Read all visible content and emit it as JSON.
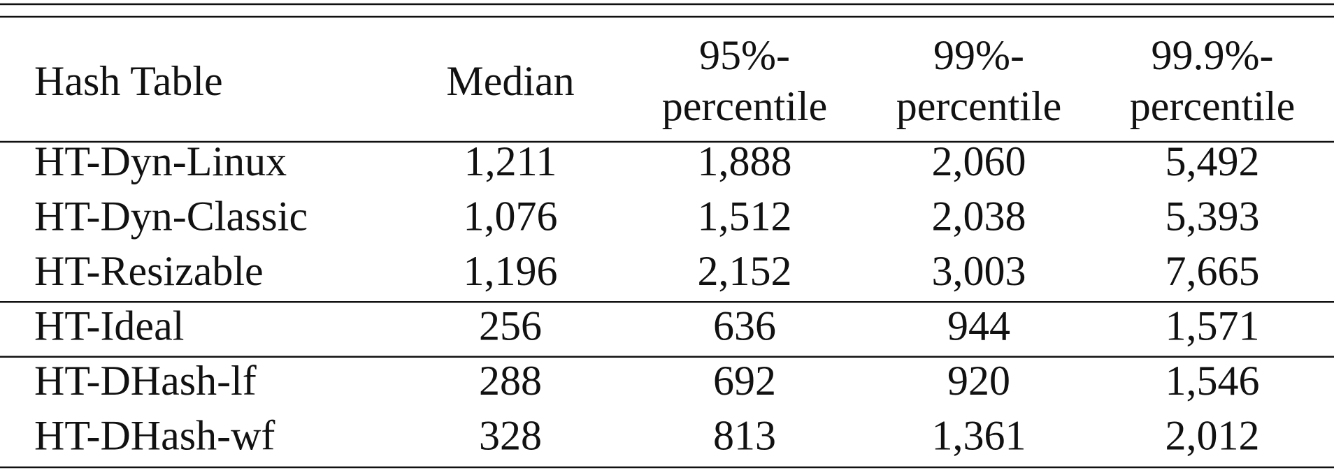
{
  "table": {
    "header": [
      [
        "Hash Table"
      ],
      [
        "Median"
      ],
      [
        "95%-",
        "percentile"
      ],
      [
        "99%-",
        "percentile"
      ],
      [
        "99.9%-",
        "percentile"
      ]
    ],
    "groups": [
      [
        [
          "HT-Dyn-Linux",
          "1,211",
          "1,888",
          "2,060",
          "5,492"
        ],
        [
          "HT-Dyn-Classic",
          "1,076",
          "1,512",
          "2,038",
          "5,393"
        ],
        [
          "HT-Resizable",
          "1,196",
          "2,152",
          "3,003",
          "7,665"
        ]
      ],
      [
        [
          "HT-Ideal",
          "256",
          "636",
          "944",
          "1,571"
        ]
      ],
      [
        [
          "HT-DHash-lf",
          "288",
          "692",
          "920",
          "1,546"
        ],
        [
          "HT-DHash-wf",
          "328",
          "813",
          "1,361",
          "2,012"
        ]
      ]
    ]
  }
}
